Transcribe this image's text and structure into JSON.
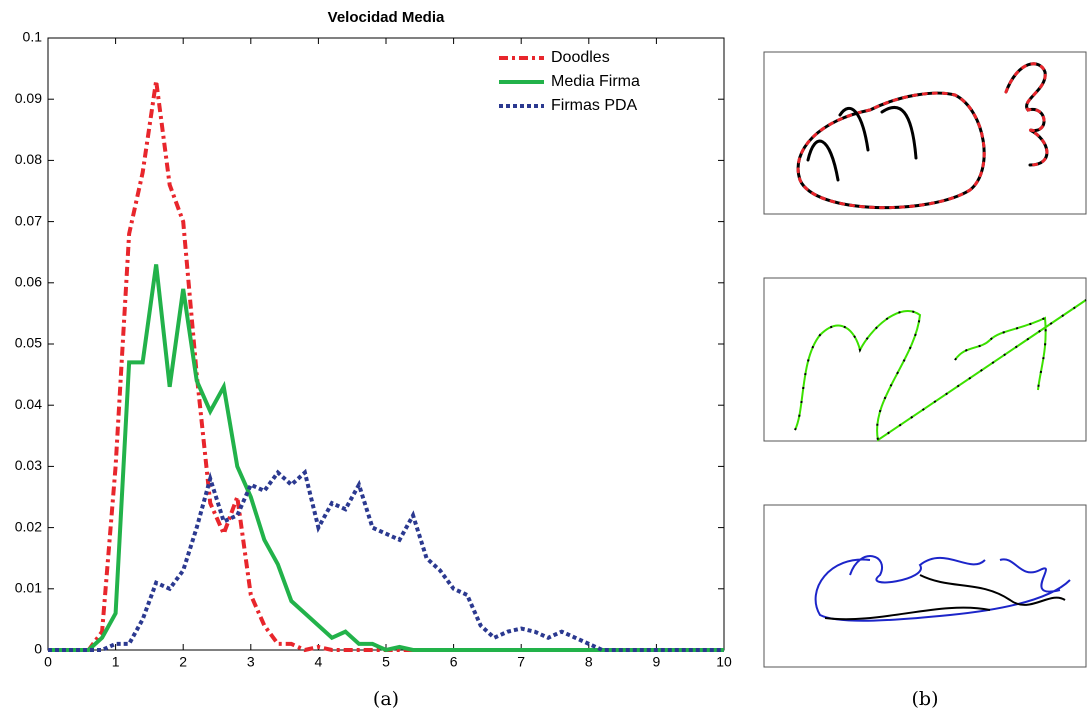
{
  "chart_data": {
    "type": "line",
    "title": "Velocidad Media",
    "x": [
      0,
      0.2,
      0.4,
      0.6,
      0.8,
      1,
      1.2,
      1.4,
      1.6,
      1.8,
      2,
      2.2,
      2.4,
      2.6,
      2.8,
      3,
      3.2,
      3.4,
      3.6,
      3.8,
      4,
      4.2,
      4.4,
      4.6,
      4.8,
      5,
      5.2,
      5.4,
      5.6,
      5.8,
      6,
      6.2,
      6.4,
      6.6,
      6.8,
      7,
      7.2,
      7.4,
      7.6,
      7.8,
      8,
      8.2,
      8.4,
      8.6,
      8.8,
      9,
      9.2,
      9.4,
      9.6,
      9.8,
      10
    ],
    "series": [
      {
        "name": "Doodles",
        "color": "#e8262c",
        "style": "dashdot",
        "values": [
          0,
          0,
          0,
          0,
          0.003,
          0.03,
          0.068,
          0.078,
          0.093,
          0.076,
          0.07,
          0.045,
          0.024,
          0.019,
          0.025,
          0.009,
          0.004,
          0.001,
          0.001,
          0,
          0.0005,
          0,
          0,
          0,
          0,
          0,
          0,
          0,
          0,
          0,
          0,
          0,
          0,
          0,
          0,
          0,
          0,
          0,
          0,
          0,
          0,
          0,
          0,
          0,
          0,
          0,
          0,
          0,
          0,
          0,
          0
        ]
      },
      {
        "name": "Media Firma",
        "color": "#22b24a",
        "style": "solid",
        "values": [
          0,
          0,
          0,
          0,
          0.002,
          0.006,
          0.047,
          0.047,
          0.063,
          0.043,
          0.059,
          0.044,
          0.039,
          0.043,
          0.03,
          0.025,
          0.018,
          0.014,
          0.008,
          0.006,
          0.004,
          0.002,
          0.003,
          0.001,
          0.001,
          0,
          0.0005,
          0,
          0,
          0,
          0,
          0,
          0,
          0,
          0,
          0,
          0,
          0,
          0,
          0,
          0,
          0,
          0,
          0,
          0,
          0,
          0,
          0,
          0,
          0,
          0
        ]
      },
      {
        "name": "Firmas PDA",
        "color": "#2b3990",
        "style": "dotted",
        "values": [
          0,
          0,
          0,
          0,
          0,
          0.001,
          0.001,
          0.005,
          0.011,
          0.01,
          0.013,
          0.02,
          0.028,
          0.021,
          0.022,
          0.027,
          0.026,
          0.029,
          0.027,
          0.029,
          0.02,
          0.024,
          0.023,
          0.027,
          0.02,
          0.019,
          0.018,
          0.022,
          0.015,
          0.013,
          0.01,
          0.009,
          0.004,
          0.002,
          0.003,
          0.0035,
          0.003,
          0.002,
          0.003,
          0.002,
          0.001,
          0,
          0,
          0,
          0,
          0,
          0,
          0,
          0,
          0,
          0
        ]
      }
    ],
    "xlim": [
      0,
      10
    ],
    "xticks": [
      0,
      1,
      2,
      3,
      4,
      5,
      6,
      7,
      8,
      9,
      10
    ],
    "ylim": [
      0,
      0.1
    ],
    "yticks": [
      0,
      0.01,
      0.02,
      0.03,
      0.04,
      0.05,
      0.06,
      0.07,
      0.08,
      0.09,
      0.1
    ],
    "legend": "upper right"
  },
  "panel_labels": [
    "(a)",
    "(b)"
  ]
}
